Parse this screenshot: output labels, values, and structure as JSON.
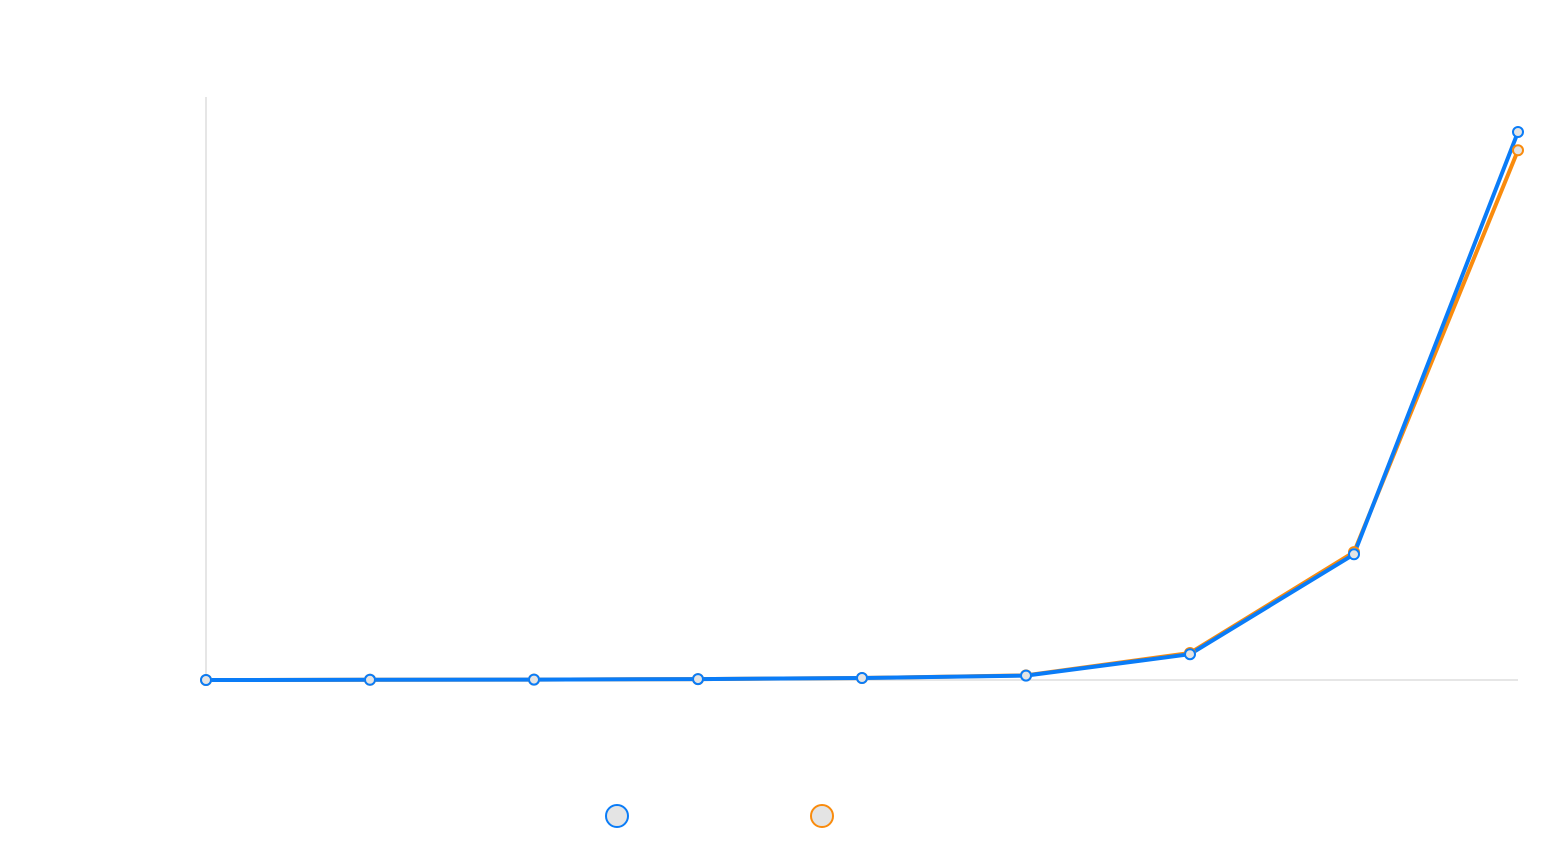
{
  "colors": {
    "series_1": "#0a7cf7",
    "series_2": "#f98b0d",
    "axis": "#dddddd",
    "background": "#ffffff"
  },
  "chart_data": {
    "type": "line",
    "categories": [
      "",
      "",
      "",
      "",
      "",
      "",
      "",
      "",
      ""
    ],
    "series": [
      {
        "values": [
          0,
          0.1,
          0.2,
          0.5,
          1.1,
          2.4,
          14.1,
          68.8,
          300
        ]
      },
      {
        "values": [
          0,
          0.1,
          0.2,
          0.5,
          1.1,
          2.5,
          14.8,
          70.0,
          290
        ]
      }
    ],
    "ylim": [
      0,
      300
    ],
    "grid": false,
    "legend_position": "bottom-center",
    "title": "",
    "xlabel": "",
    "ylabel": ""
  }
}
